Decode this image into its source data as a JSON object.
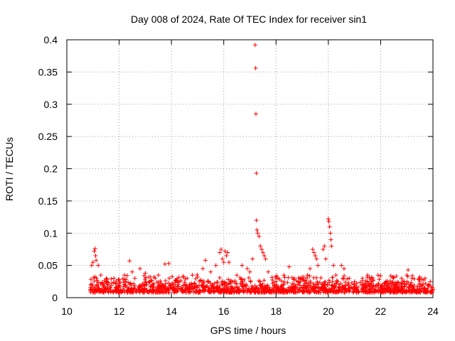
{
  "colors": {
    "point": "#ff0000",
    "grid": "#a0a0a0",
    "frame": "#000000"
  },
  "chart_data": {
    "type": "scatter",
    "title": "Day 008 of 2024, Rate Of TEC Index for receiver sin1",
    "xlabel": "GPS time / hours",
    "ylabel": "ROTI / TECUs",
    "xlim": [
      10,
      24
    ],
    "ylim": [
      0,
      0.4
    ],
    "xticks": [
      10,
      12,
      14,
      16,
      18,
      20,
      22,
      24
    ],
    "xtick_labels": [
      "10",
      "12",
      "14",
      "16",
      "18",
      "20",
      "22",
      "24"
    ],
    "yticks": [
      0,
      0.05,
      0.1,
      0.15,
      0.2,
      0.25,
      0.3,
      0.35,
      0.4
    ],
    "ytick_labels": [
      "0",
      "0.05",
      "0.1",
      "0.15",
      "0.2",
      "0.25",
      "0.3",
      "0.35",
      "0.4"
    ],
    "grid": true,
    "marker": "+",
    "series": [
      {
        "name": "ROTI",
        "points": [
          [
            10.9,
            0.012
          ],
          [
            10.95,
            0.05
          ],
          [
            11.0,
            0.055
          ],
          [
            11.05,
            0.072
          ],
          [
            11.08,
            0.076
          ],
          [
            11.1,
            0.065
          ],
          [
            11.12,
            0.058
          ],
          [
            11.2,
            0.05
          ],
          [
            11.3,
            0.035
          ],
          [
            11.5,
            0.025
          ],
          [
            11.8,
            0.03
          ],
          [
            12.0,
            0.028
          ],
          [
            12.2,
            0.035
          ],
          [
            12.4,
            0.057
          ],
          [
            12.5,
            0.04
          ],
          [
            12.6,
            0.03
          ],
          [
            12.8,
            0.045
          ],
          [
            13.0,
            0.038
          ],
          [
            13.2,
            0.032
          ],
          [
            13.5,
            0.035
          ],
          [
            13.75,
            0.052
          ],
          [
            13.9,
            0.053
          ],
          [
            14.0,
            0.02
          ],
          [
            14.3,
            0.025
          ],
          [
            14.6,
            0.03
          ],
          [
            14.8,
            0.035
          ],
          [
            15.0,
            0.032
          ],
          [
            15.2,
            0.045
          ],
          [
            15.3,
            0.058
          ],
          [
            15.5,
            0.04
          ],
          [
            15.7,
            0.05
          ],
          [
            15.85,
            0.07
          ],
          [
            15.9,
            0.075
          ],
          [
            15.95,
            0.06
          ],
          [
            16.0,
            0.055
          ],
          [
            16.05,
            0.072
          ],
          [
            16.1,
            0.065
          ],
          [
            16.15,
            0.07
          ],
          [
            16.2,
            0.055
          ],
          [
            16.5,
            0.035
          ],
          [
            16.7,
            0.05
          ],
          [
            16.9,
            0.045
          ],
          [
            17.0,
            0.04
          ],
          [
            17.1,
            0.06
          ],
          [
            17.2,
            0.392
          ],
          [
            17.22,
            0.356
          ],
          [
            17.23,
            0.285
          ],
          [
            17.25,
            0.193
          ],
          [
            17.25,
            0.12
          ],
          [
            17.27,
            0.105
          ],
          [
            17.3,
            0.1
          ],
          [
            17.35,
            0.095
          ],
          [
            17.4,
            0.08
          ],
          [
            17.45,
            0.075
          ],
          [
            17.5,
            0.07
          ],
          [
            17.55,
            0.065
          ],
          [
            17.6,
            0.06
          ],
          [
            17.7,
            0.04
          ],
          [
            18.0,
            0.025
          ],
          [
            18.3,
            0.035
          ],
          [
            18.5,
            0.048
          ],
          [
            18.7,
            0.03
          ],
          [
            19.0,
            0.032
          ],
          [
            19.2,
            0.035
          ],
          [
            19.3,
            0.045
          ],
          [
            19.4,
            0.075
          ],
          [
            19.45,
            0.07
          ],
          [
            19.5,
            0.065
          ],
          [
            19.55,
            0.06
          ],
          [
            19.6,
            0.05
          ],
          [
            19.8,
            0.075
          ],
          [
            19.85,
            0.08
          ],
          [
            19.9,
            0.06
          ],
          [
            20.0,
            0.122
          ],
          [
            20.02,
            0.118
          ],
          [
            20.05,
            0.11
          ],
          [
            20.08,
            0.1
          ],
          [
            20.1,
            0.09
          ],
          [
            20.12,
            0.08
          ],
          [
            20.2,
            0.05
          ],
          [
            20.5,
            0.05
          ],
          [
            20.6,
            0.045
          ],
          [
            20.8,
            0.03
          ],
          [
            21.0,
            0.025
          ],
          [
            21.3,
            0.03
          ],
          [
            21.5,
            0.035
          ],
          [
            21.7,
            0.03
          ],
          [
            21.9,
            0.035
          ],
          [
            22.2,
            0.025
          ],
          [
            22.5,
            0.02
          ],
          [
            22.8,
            0.03
          ],
          [
            23.0,
            0.035
          ],
          [
            23.05,
            0.043
          ],
          [
            23.2,
            0.03
          ],
          [
            23.5,
            0.032
          ],
          [
            23.7,
            0.03
          ],
          [
            23.9,
            0.025
          ],
          [
            24.0,
            0.012
          ]
        ]
      }
    ]
  }
}
